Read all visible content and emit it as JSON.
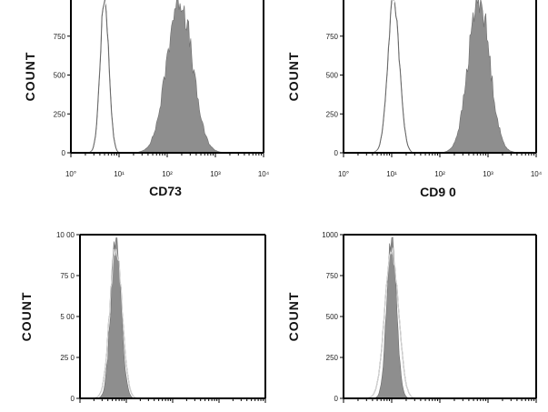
{
  "chart_data": [
    {
      "type": "area",
      "xlabel": "CD73",
      "ylabel": "COUNT",
      "x_scale": "log",
      "xlim": [
        1,
        10000
      ],
      "ylim": [
        0,
        1000
      ],
      "x_ticks": [
        "10°",
        "10¹",
        "10²",
        "10³",
        "10⁴"
      ],
      "y_ticks": [
        "0",
        "250",
        "500",
        "750"
      ],
      "series": [
        {
          "role": "control",
          "style": "outline",
          "peak_x": 5,
          "peak_count": 1000
        },
        {
          "role": "sample",
          "style": "filled",
          "peak_x": 180,
          "peak_count": 1000
        }
      ]
    },
    {
      "type": "area",
      "xlabel": "CD9 0",
      "ylabel": "COUNT",
      "x_scale": "log",
      "xlim": [
        1,
        10000
      ],
      "ylim": [
        0,
        1000
      ],
      "x_ticks": [
        "10°",
        "10¹",
        "10²",
        "10³",
        "10⁴"
      ],
      "y_ticks": [
        "0",
        "250",
        "500",
        "750"
      ],
      "series": [
        {
          "role": "control",
          "style": "outline",
          "peak_x": 11,
          "peak_count": 1000
        },
        {
          "role": "sample",
          "style": "filled",
          "peak_x": 650,
          "peak_count": 1000
        }
      ]
    },
    {
      "type": "area",
      "xlabel": "",
      "ylabel": "COUNT",
      "x_scale": "log",
      "xlim": [
        1,
        10000
      ],
      "ylim": [
        0,
        1000
      ],
      "x_ticks": [],
      "y_ticks": [
        "0",
        "25 0",
        "5 00",
        "75 0",
        "10 00"
      ],
      "series": [
        {
          "role": "control",
          "style": "outline",
          "peak_x": 6,
          "peak_count": 930
        },
        {
          "role": "sample",
          "style": "filled",
          "peak_x": 6,
          "peak_count": 980
        }
      ]
    },
    {
      "type": "area",
      "xlabel": "",
      "ylabel": "COUNT",
      "x_scale": "log",
      "xlim": [
        1,
        10000
      ],
      "ylim": [
        0,
        1000
      ],
      "x_ticks": [],
      "y_ticks": [
        "0",
        "250",
        "500",
        "750",
        "1000"
      ],
      "series": [
        {
          "role": "control",
          "style": "outline",
          "peak_x": 10,
          "peak_count": 920
        },
        {
          "role": "sample",
          "style": "filled",
          "peak_x": 10,
          "peak_count": 985
        }
      ]
    }
  ]
}
